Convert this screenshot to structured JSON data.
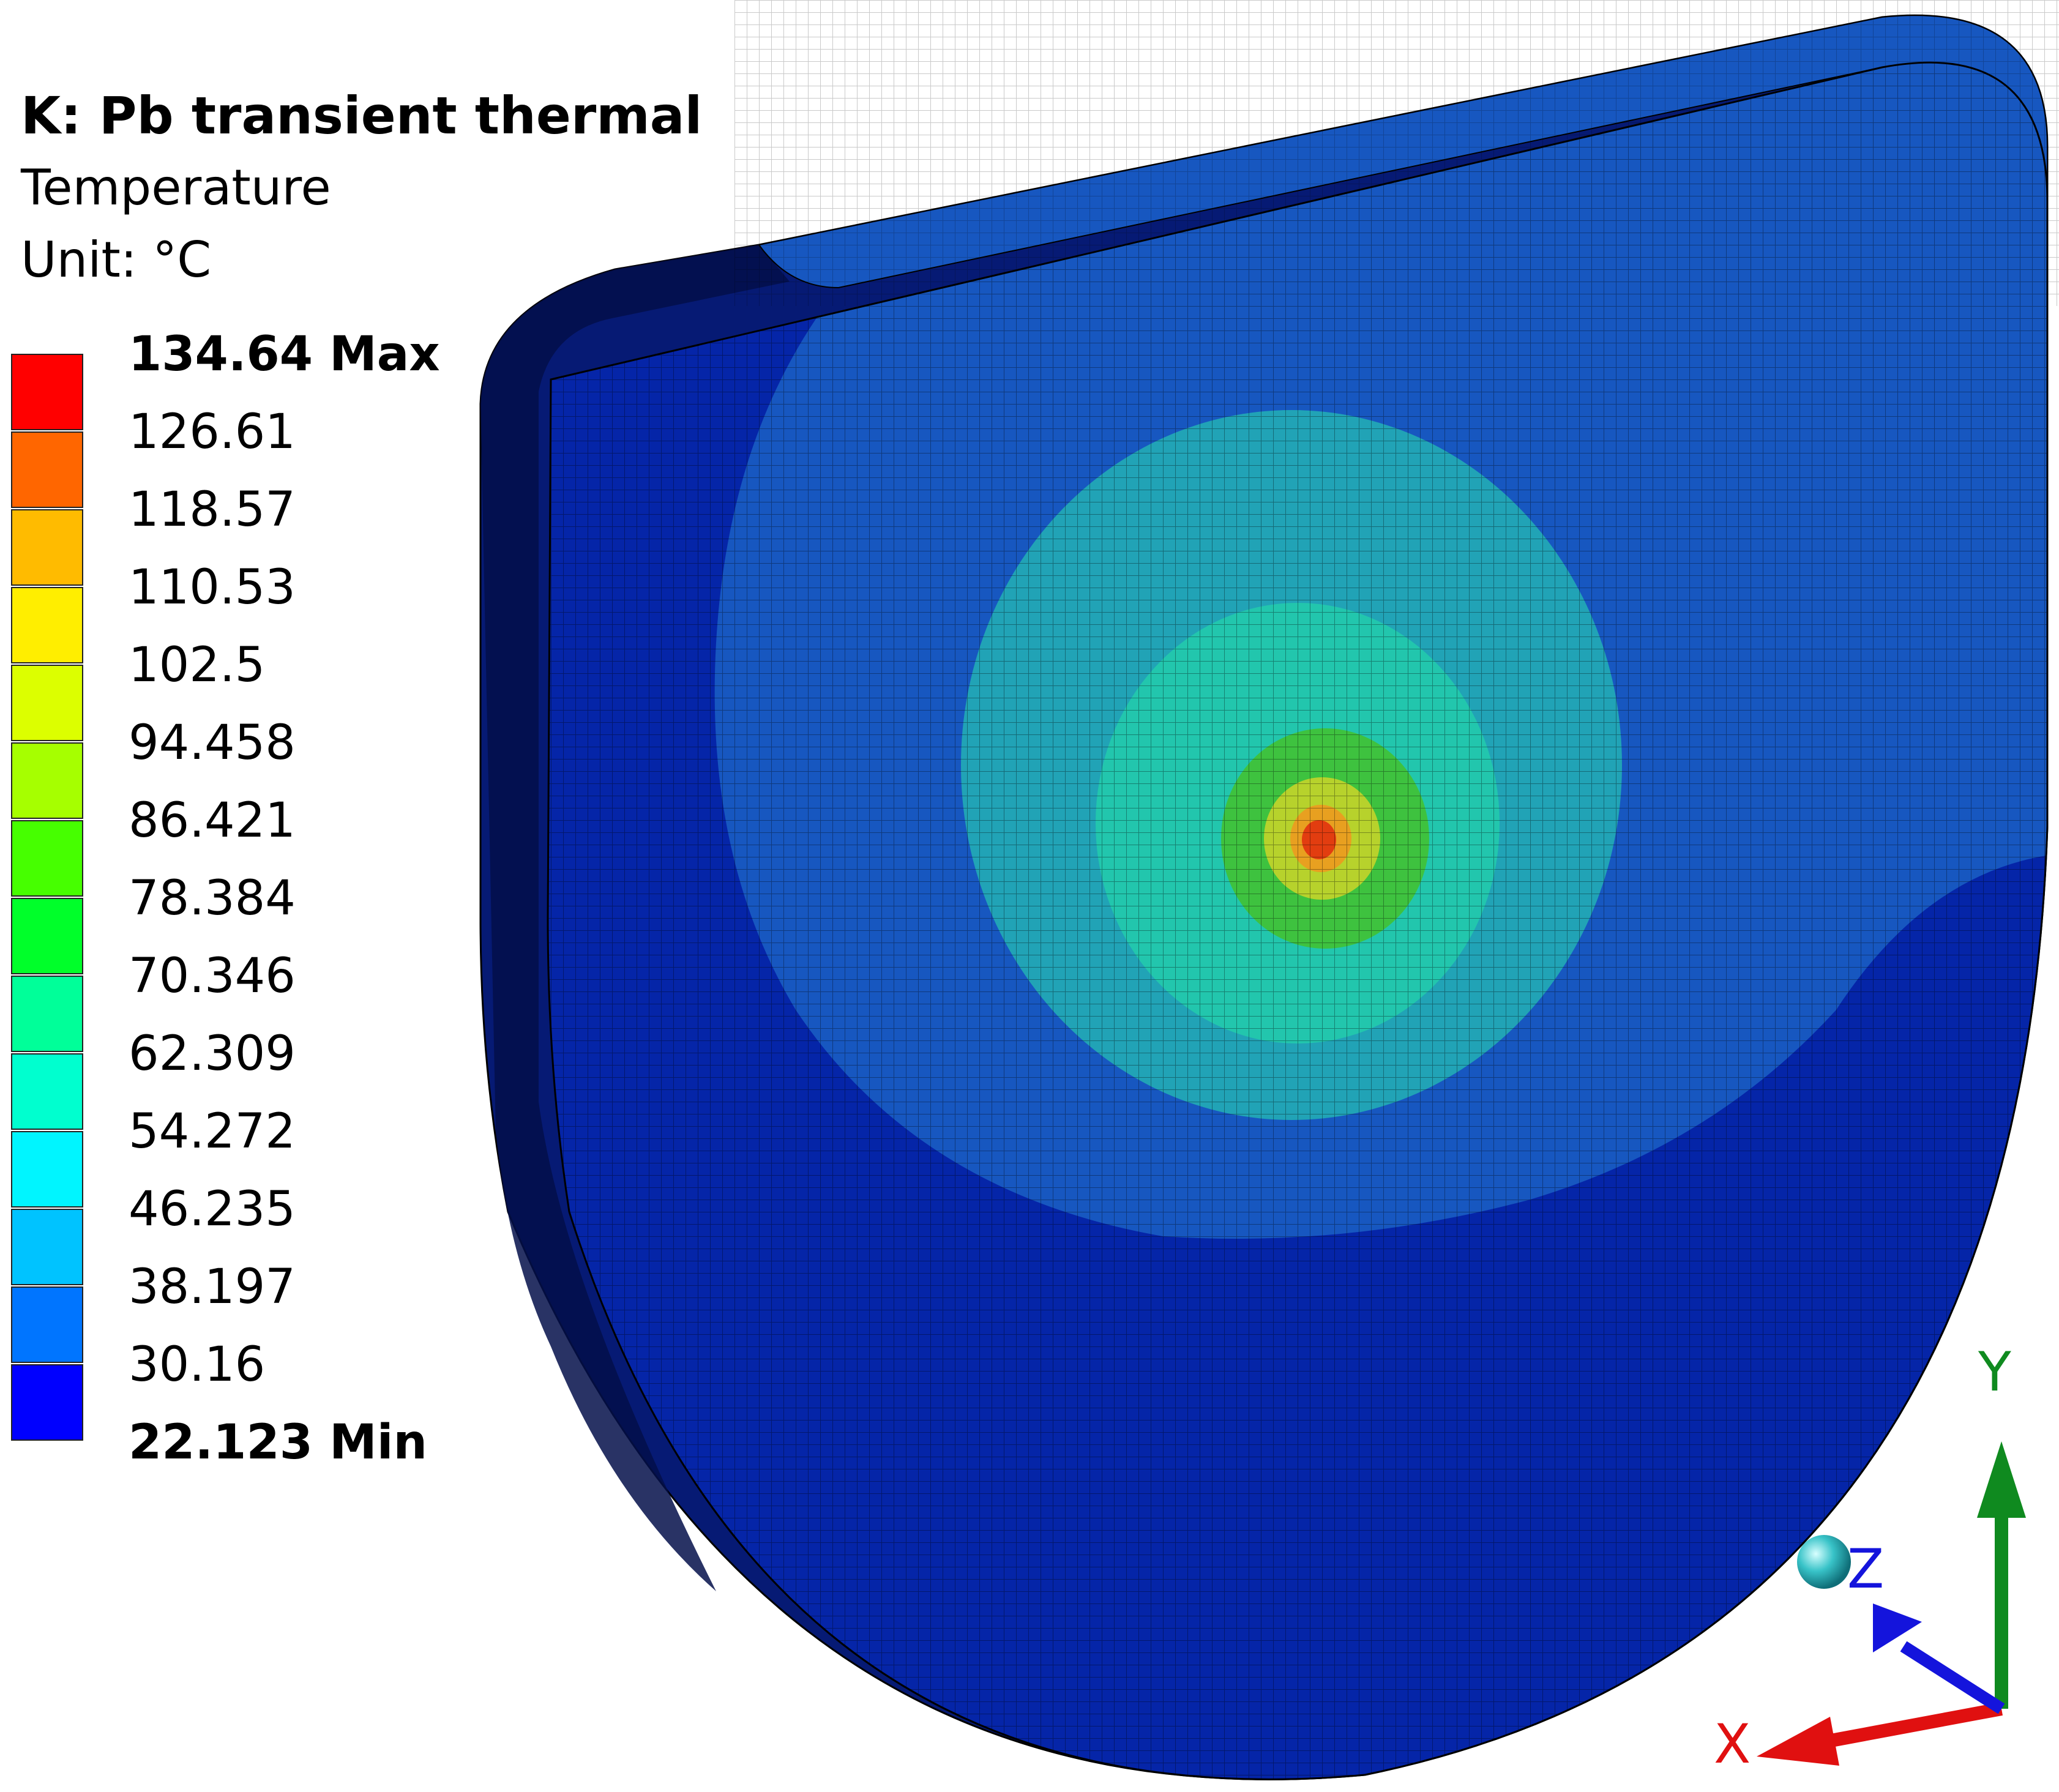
{
  "result": {
    "title": "K: Pb transient thermal",
    "quantity": "Temperature",
    "unit": "Unit: °C"
  },
  "legend": {
    "max_label": "134.64 Max",
    "min_label": "22.123 Min",
    "levels": [
      "134.64 Max",
      "126.61",
      "118.57",
      "110.53",
      "102.5",
      "94.458",
      "86.421",
      "78.384",
      "70.346",
      "62.309",
      "54.272",
      "46.235",
      "38.197",
      "30.16",
      "22.123 Min"
    ],
    "band_colors": [
      "#ff0000",
      "#ff6600",
      "#ffbb00",
      "#ffee00",
      "#dcff00",
      "#a6ff00",
      "#46ff00",
      "#00ff2a",
      "#00ff99",
      "#00ffcf",
      "#00f5ff",
      "#00c3ff",
      "#0075ff",
      "#0000ff"
    ]
  },
  "contour_colors": {
    "body_min": "#0525a8",
    "band_2": "#1757c0",
    "band_3": "#21a3b6",
    "band_4": "#22c6ad",
    "band_5": "#3ec23f",
    "band_6": "#b7d22c",
    "hotspot": "#e23d10",
    "side_face": "#061a74"
  },
  "triad": {
    "x_label": "X",
    "y_label": "Y",
    "z_label": "Z",
    "x_color": "#e01010",
    "y_color": "#0f8a1f",
    "z_color": "#1414dc"
  }
}
